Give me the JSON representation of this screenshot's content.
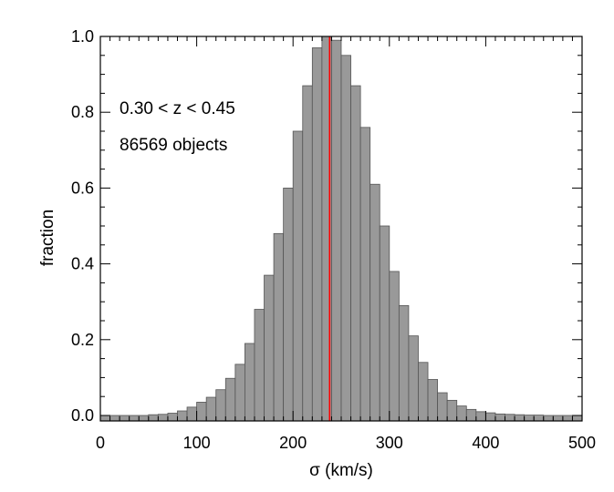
{
  "chart_data": {
    "type": "bar",
    "title": "",
    "xlabel": "σ (km/s)",
    "ylabel": "fraction",
    "xlim": [
      0,
      500
    ],
    "ylim": [
      0,
      1.0
    ],
    "bin_width": 10,
    "bin_starts": [
      0,
      10,
      20,
      30,
      40,
      50,
      60,
      70,
      80,
      90,
      100,
      110,
      120,
      130,
      140,
      150,
      160,
      170,
      180,
      190,
      200,
      210,
      220,
      230,
      240,
      250,
      260,
      270,
      280,
      290,
      300,
      310,
      320,
      330,
      340,
      350,
      360,
      370,
      380,
      390,
      400,
      410,
      420,
      430,
      440,
      450,
      460,
      470,
      480,
      490
    ],
    "values": [
      0.0,
      0.0,
      0.0,
      0.0,
      0.0,
      0.002,
      0.003,
      0.006,
      0.012,
      0.022,
      0.035,
      0.048,
      0.068,
      0.098,
      0.135,
      0.19,
      0.28,
      0.37,
      0.48,
      0.6,
      0.75,
      0.87,
      0.97,
      1.0,
      0.99,
      0.95,
      0.87,
      0.76,
      0.61,
      0.5,
      0.38,
      0.29,
      0.21,
      0.14,
      0.095,
      0.06,
      0.04,
      0.025,
      0.016,
      0.01,
      0.007,
      0.004,
      0.003,
      0.002,
      0.001,
      0.001,
      0.0,
      0.0,
      0.0,
      0.0
    ],
    "bar_color": "#999999",
    "marker_line": {
      "x": 238,
      "color": "#ff0000"
    },
    "x_ticks": [
      "0",
      "100",
      "200",
      "300",
      "400",
      "500"
    ],
    "y_ticks": [
      "0.0",
      "0.2",
      "0.4",
      "0.6",
      "0.8",
      "1.0"
    ],
    "annotations": [
      "0.30 < z < 0.45",
      "86569 objects"
    ]
  }
}
